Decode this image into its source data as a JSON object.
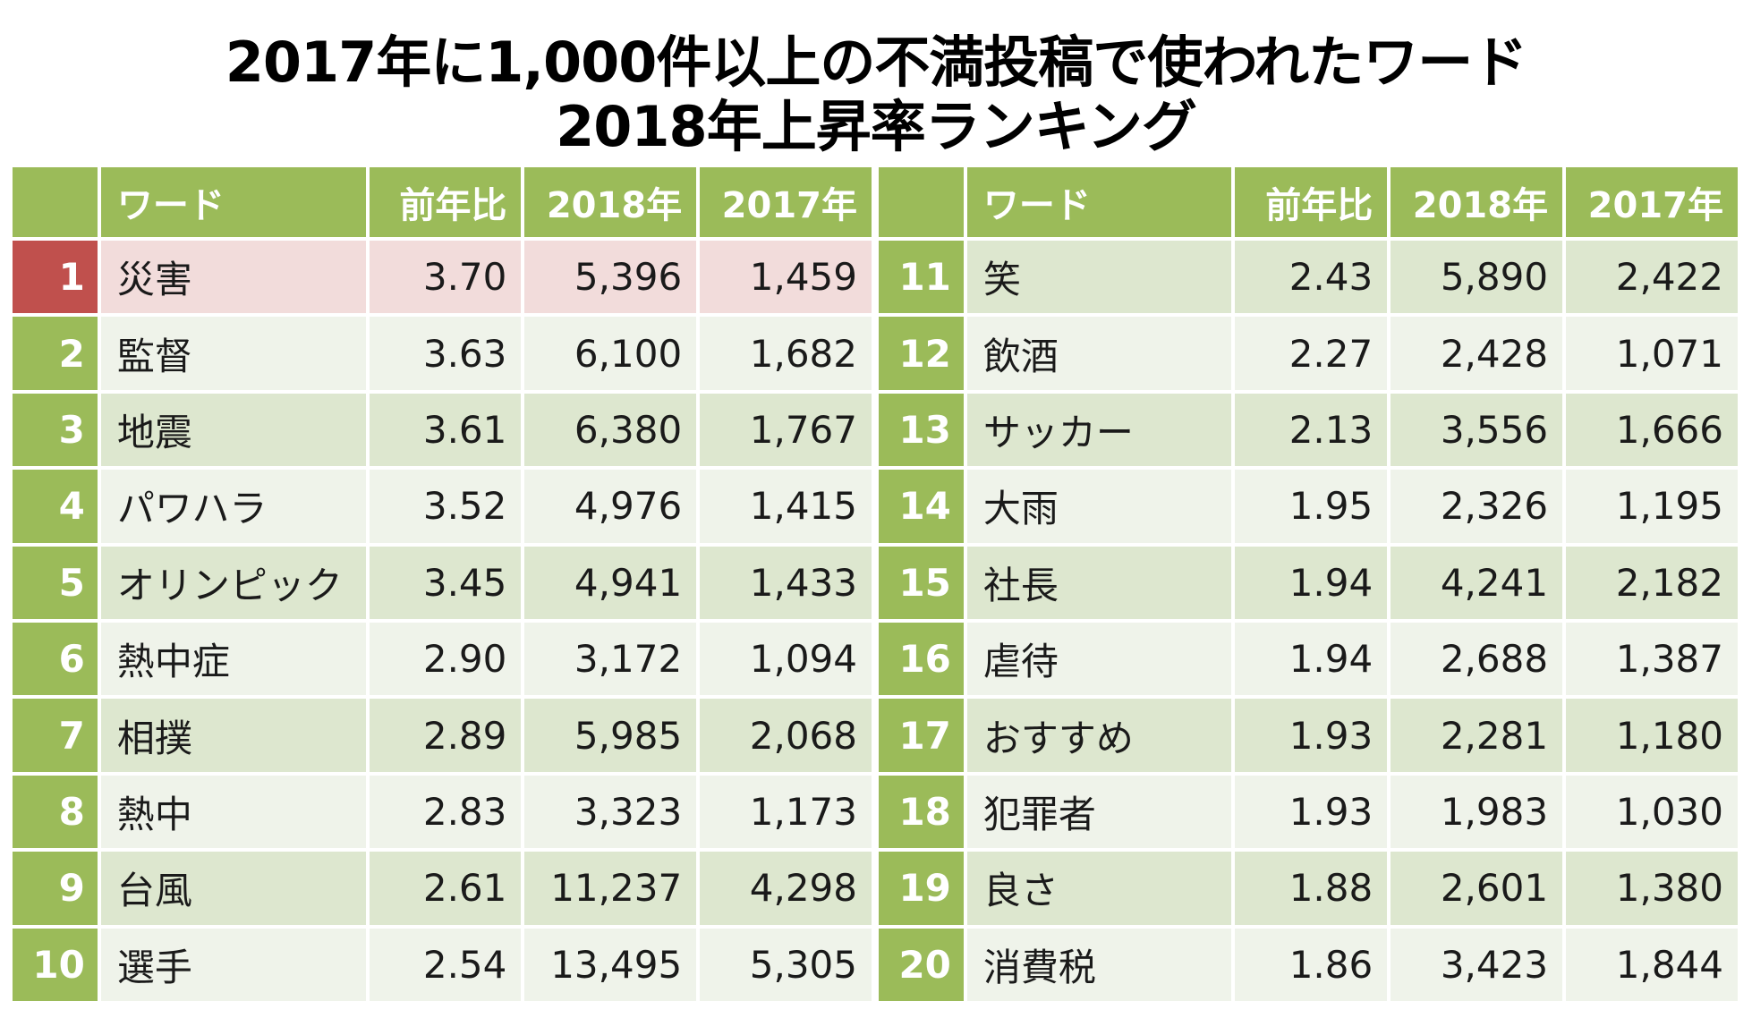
{
  "title": {
    "line1": "2017年に1,000件以上の不満投稿で使われたワード",
    "line2": "2018年上昇率ランキング"
  },
  "headers": {
    "rank": "",
    "word": "ワード",
    "ratio": "前年比",
    "y2018": "2018年",
    "y2017": "2017年"
  },
  "colors": {
    "header_green": "#9bbb59",
    "row_dark": "#dde7cf",
    "row_light": "#eff3ea",
    "highlight_row": "#f2dcdb",
    "highlight_rank": "#c0504d"
  },
  "left_rows": [
    {
      "rank": "1",
      "word": "災害",
      "ratio": "3.70",
      "y2018": "5,396",
      "y2017": "1,459"
    },
    {
      "rank": "2",
      "word": "監督",
      "ratio": "3.63",
      "y2018": "6,100",
      "y2017": "1,682"
    },
    {
      "rank": "3",
      "word": "地震",
      "ratio": "3.61",
      "y2018": "6,380",
      "y2017": "1,767"
    },
    {
      "rank": "4",
      "word": "パワハラ",
      "ratio": "3.52",
      "y2018": "4,976",
      "y2017": "1,415"
    },
    {
      "rank": "5",
      "word": "オリンピック",
      "ratio": "3.45",
      "y2018": "4,941",
      "y2017": "1,433"
    },
    {
      "rank": "6",
      "word": "熱中症",
      "ratio": "2.90",
      "y2018": "3,172",
      "y2017": "1,094"
    },
    {
      "rank": "7",
      "word": "相撲",
      "ratio": "2.89",
      "y2018": "5,985",
      "y2017": "2,068"
    },
    {
      "rank": "8",
      "word": "熱中",
      "ratio": "2.83",
      "y2018": "3,323",
      "y2017": "1,173"
    },
    {
      "rank": "9",
      "word": "台風",
      "ratio": "2.61",
      "y2018": "11,237",
      "y2017": "4,298"
    },
    {
      "rank": "10",
      "word": "選手",
      "ratio": "2.54",
      "y2018": "13,495",
      "y2017": "5,305"
    }
  ],
  "right_rows": [
    {
      "rank": "11",
      "word": "笑",
      "ratio": "2.43",
      "y2018": "5,890",
      "y2017": "2,422"
    },
    {
      "rank": "12",
      "word": "飲酒",
      "ratio": "2.27",
      "y2018": "2,428",
      "y2017": "1,071"
    },
    {
      "rank": "13",
      "word": "サッカー",
      "ratio": "2.13",
      "y2018": "3,556",
      "y2017": "1,666"
    },
    {
      "rank": "14",
      "word": "大雨",
      "ratio": "1.95",
      "y2018": "2,326",
      "y2017": "1,195"
    },
    {
      "rank": "15",
      "word": "社長",
      "ratio": "1.94",
      "y2018": "4,241",
      "y2017": "2,182"
    },
    {
      "rank": "16",
      "word": "虐待",
      "ratio": "1.94",
      "y2018": "2,688",
      "y2017": "1,387"
    },
    {
      "rank": "17",
      "word": "おすすめ",
      "ratio": "1.93",
      "y2018": "2,281",
      "y2017": "1,180"
    },
    {
      "rank": "18",
      "word": "犯罪者",
      "ratio": "1.93",
      "y2018": "1,983",
      "y2017": "1,030"
    },
    {
      "rank": "19",
      "word": "良さ",
      "ratio": "1.88",
      "y2018": "2,601",
      "y2017": "1,380"
    },
    {
      "rank": "20",
      "word": "消費税",
      "ratio": "1.86",
      "y2018": "3,423",
      "y2017": "1,844"
    }
  ]
}
